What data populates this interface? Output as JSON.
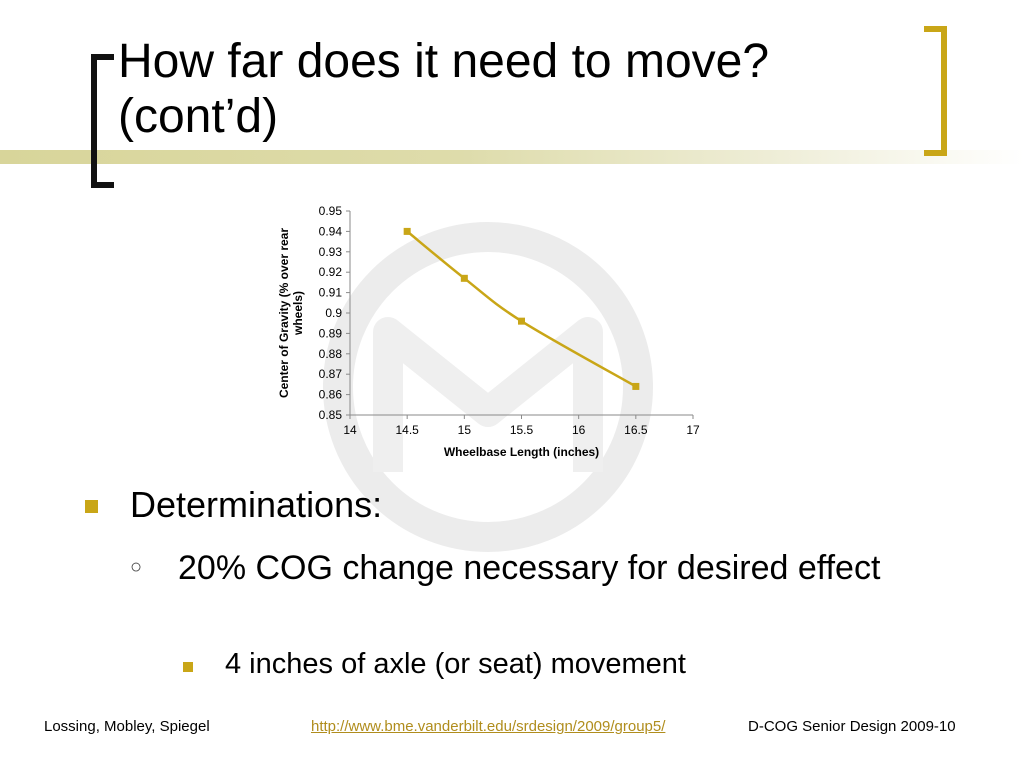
{
  "slide": {
    "title_line1": "How far does it need to move?",
    "title_line2": "(cont’d)",
    "accent_color": "#c9a617"
  },
  "bullets": {
    "level1": "Determinations:",
    "level2": "20% COG change necessary for desired effect",
    "level3": "4 inches of axle (or seat) movement"
  },
  "footer": {
    "authors": "Lossing, Mobley, Spiegel",
    "url": "http://www.bme.vanderbilt.edu/srdesign/2009/group5/",
    "course": "D-COG Senior Design 2009-10"
  },
  "chart_data": {
    "type": "line",
    "title": "",
    "xlabel": "Wheelbase Length (inches)",
    "ylabel": "Center of Gravity (% over rear wheels)",
    "xlim": [
      14,
      17
    ],
    "ylim": [
      0.85,
      0.95
    ],
    "x_ticks": [
      "14",
      "14.5",
      "15",
      "15.5",
      "16",
      "16.5",
      "17"
    ],
    "y_ticks": [
      "0.85",
      "0.86",
      "0.87",
      "0.88",
      "0.89",
      "0.9",
      "0.91",
      "0.92",
      "0.93",
      "0.94",
      "0.95"
    ],
    "series": [
      {
        "x": [
          14.5,
          15,
          15.5,
          16.5
        ],
        "y": [
          0.94,
          0.917,
          0.896,
          0.864
        ],
        "color": "#c9a617"
      }
    ],
    "grid": false
  }
}
